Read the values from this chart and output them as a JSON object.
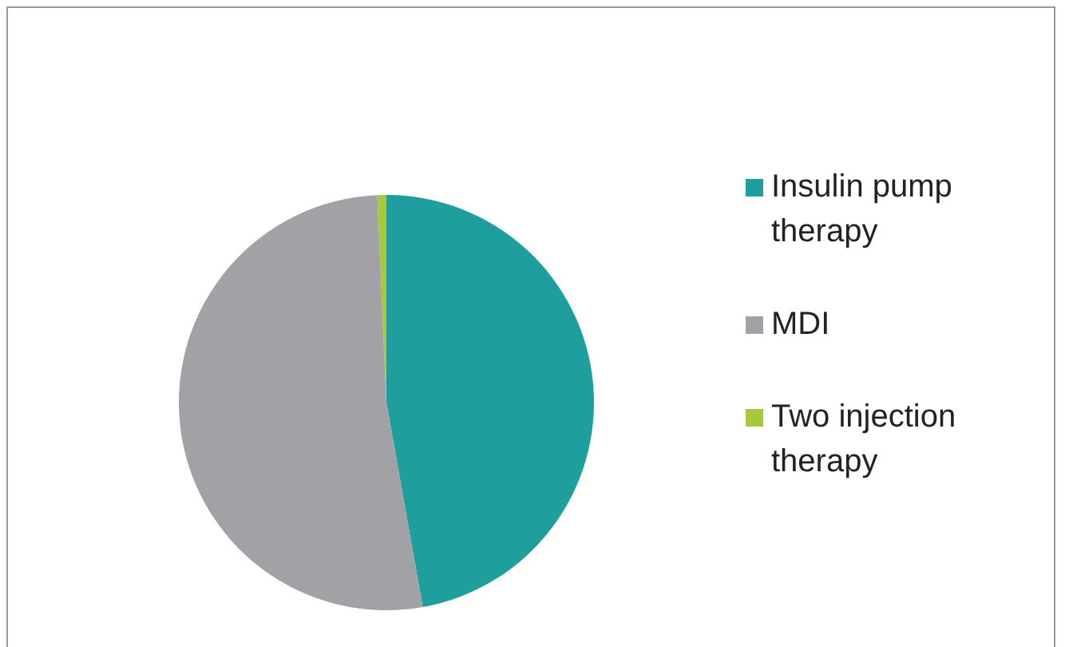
{
  "chart_data": {
    "type": "pie",
    "categories": [
      "Insulin pump therapy",
      "MDI",
      "Two injection therapy"
    ],
    "values": [
      47.2,
      52.1,
      0.7
    ],
    "colors": [
      "#1f9e9e",
      "#a2a2a6",
      "#a6c83a"
    ],
    "legend": "right"
  }
}
